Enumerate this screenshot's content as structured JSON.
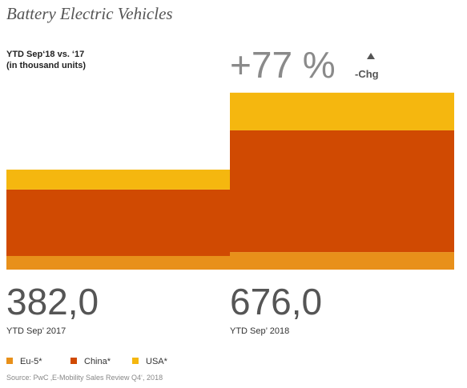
{
  "chart_data": {
    "type": "stacked_bar",
    "title": "Battery Electric Vehicles",
    "subtitle": [
      "YTD Sep‘18 vs. ‘17",
      "(in thousand units)"
    ],
    "categories": [
      "YTD Sep’ 2017",
      "YTD Sep’ 2018"
    ],
    "series": [
      {
        "name": "Eu-5*",
        "color": "#e8901a",
        "values": [
          52,
          67
        ]
      },
      {
        "name": "China*",
        "color": "#d04a02",
        "values": [
          254,
          465
        ]
      },
      {
        "name": "USA*",
        "color": "#f5b70f",
        "values": [
          76,
          144
        ]
      }
    ],
    "totals": [
      382,
      676
    ],
    "total_labels": [
      "382,0",
      "676,0"
    ],
    "change": {
      "value": 77,
      "label": "+77 %"
    },
    "change_caption": "-Chg",
    "ylim": [
      0,
      700
    ],
    "grid": false,
    "source": "Source: PwC ‚E-Mobility Sales Review Q4‘, 2018"
  }
}
